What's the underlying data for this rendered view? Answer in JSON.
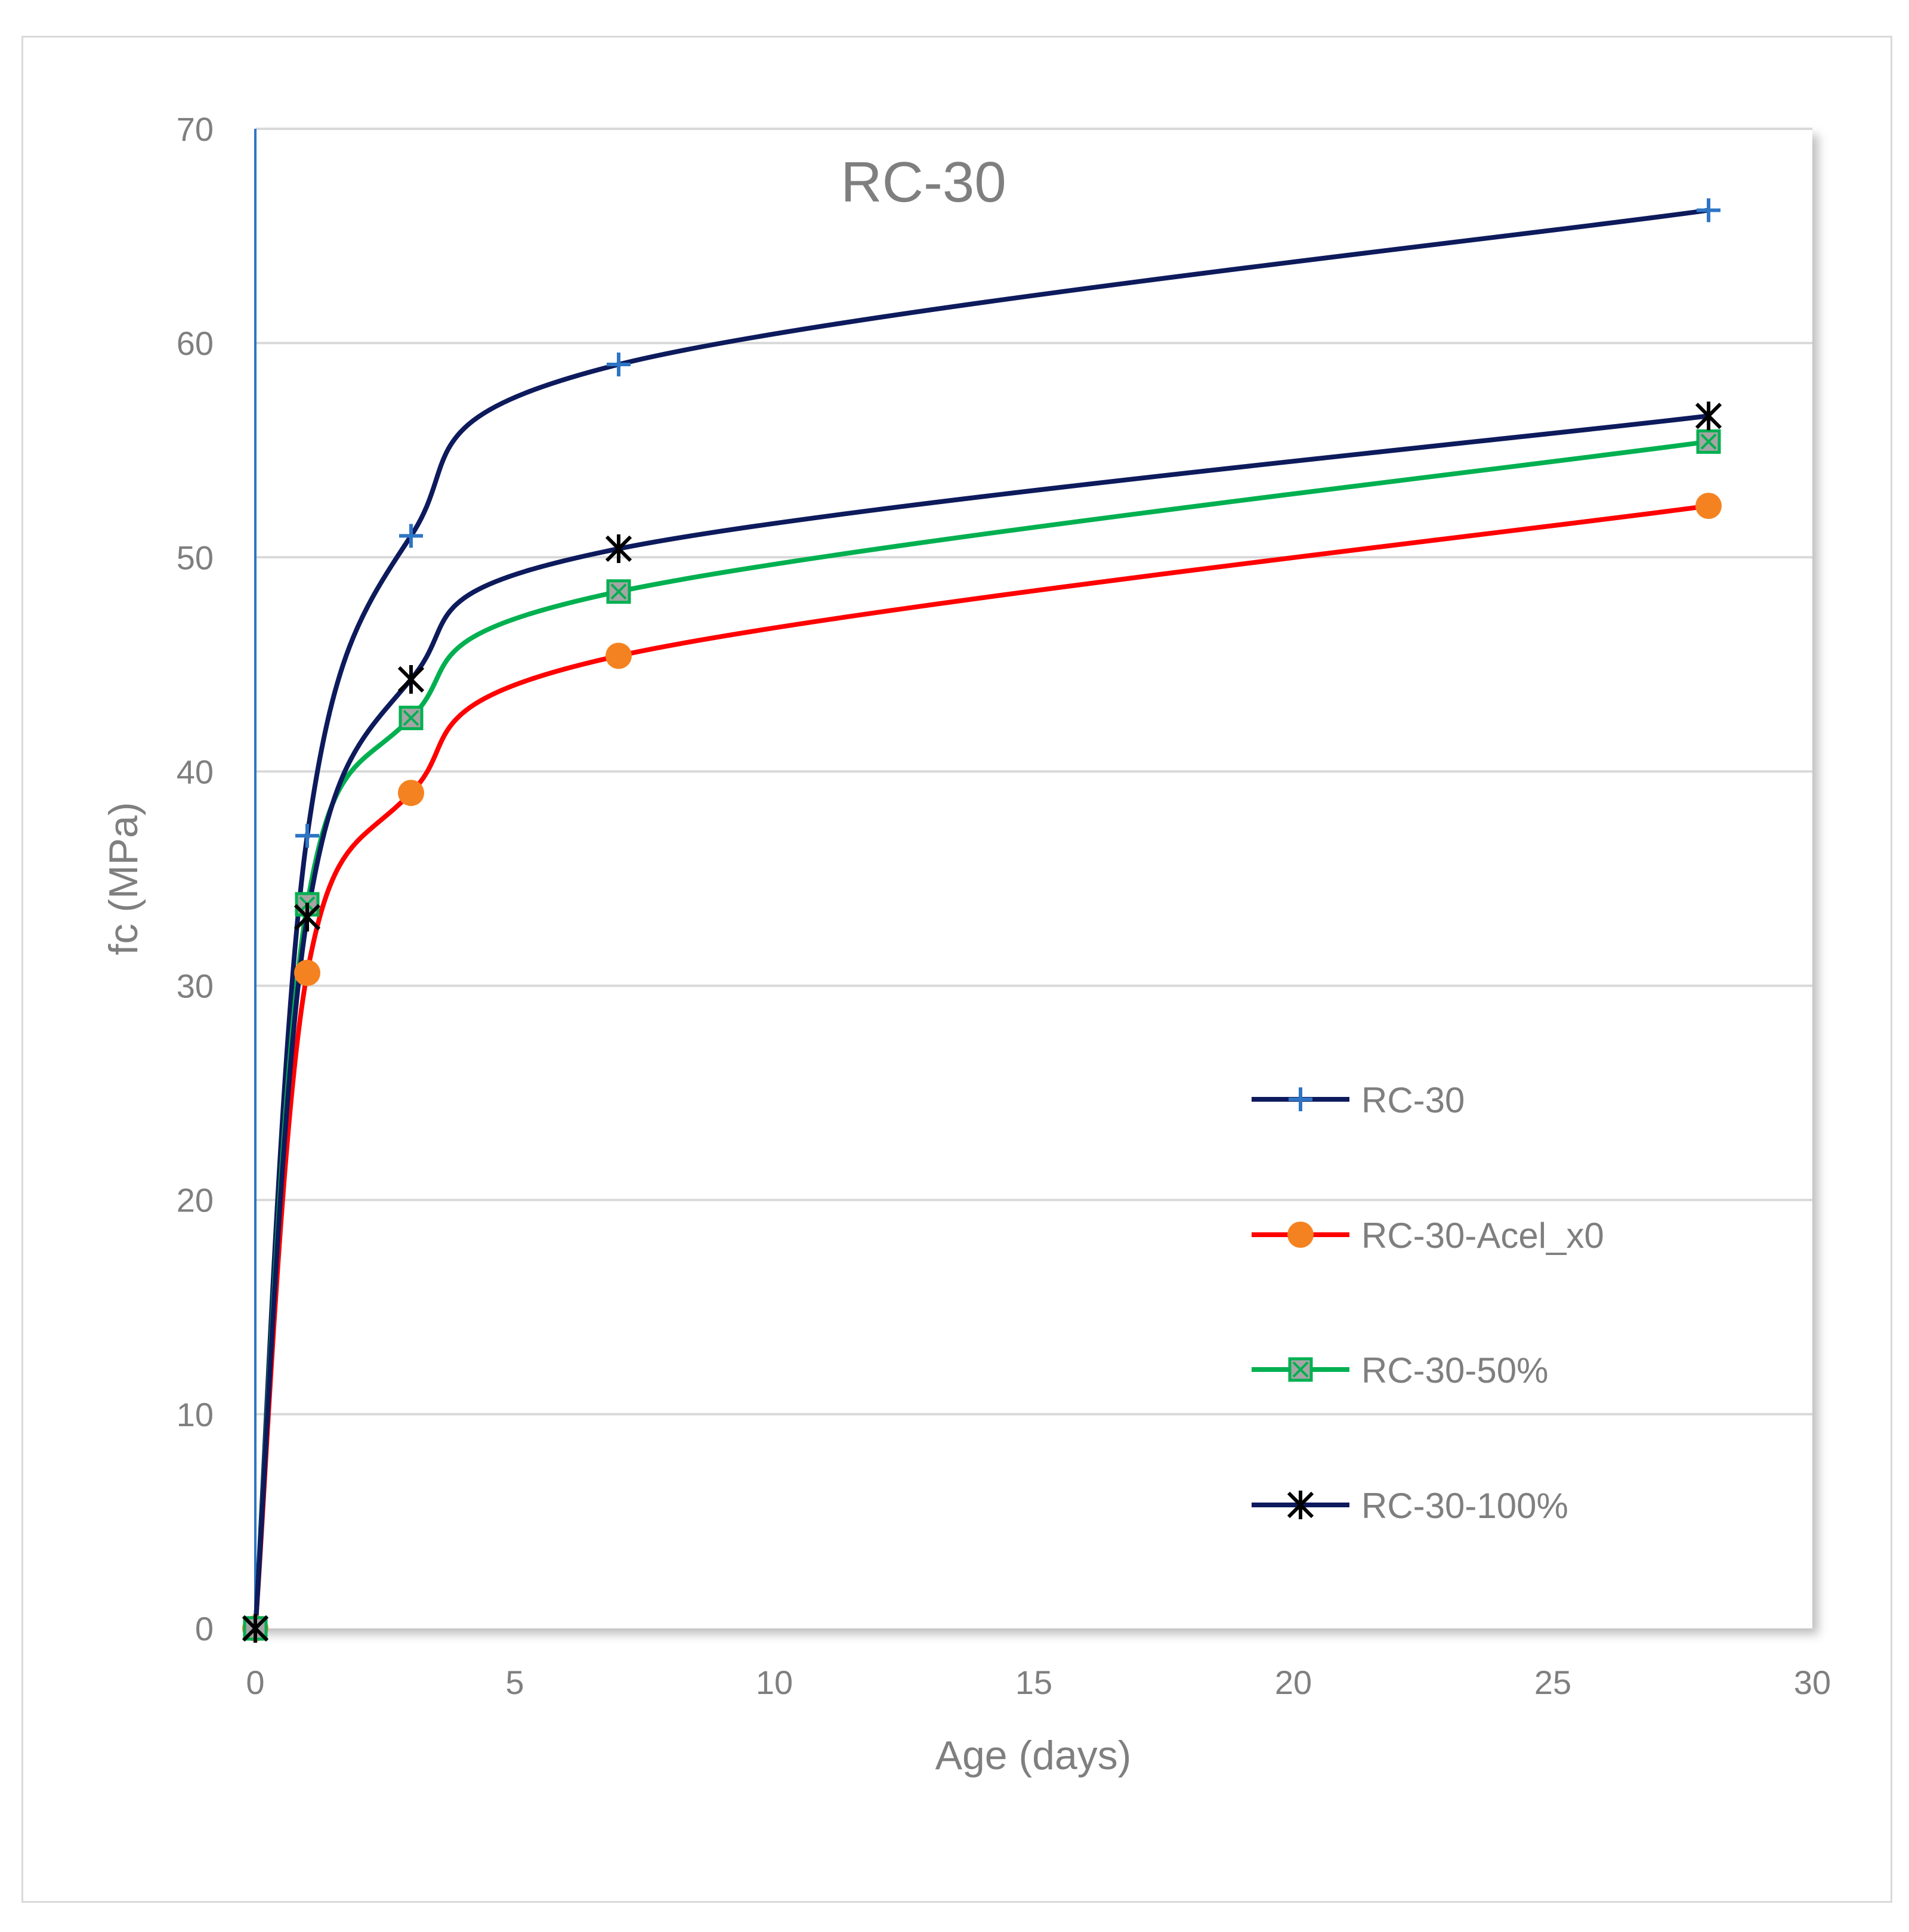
{
  "chart_data": {
    "type": "line",
    "title": "RC-30",
    "xlabel": "Age (days)",
    "ylabel": "fc (MPa)",
    "xlim": [
      0,
      30
    ],
    "ylim": [
      0,
      70
    ],
    "xticks": [
      0,
      5,
      10,
      15,
      20,
      25,
      30
    ],
    "yticks": [
      0,
      10,
      20,
      30,
      40,
      50,
      60,
      70
    ],
    "grid": "horizontal",
    "legend_position": "right",
    "x": [
      0,
      1,
      3,
      7,
      28
    ],
    "series": [
      {
        "name": "RC-30",
        "values": [
          0,
          37,
          51,
          59,
          66.2
        ],
        "line_color": "#0d1a5c",
        "marker": "plus",
        "marker_color": "#2e75c5"
      },
      {
        "name": "RC-30-Acel_x0",
        "values": [
          0,
          30.6,
          39,
          45.4,
          52.4
        ],
        "line_color": "#ff0000",
        "marker": "circle",
        "marker_color": "#f58220"
      },
      {
        "name": "RC-30-50%",
        "values": [
          0,
          33.8,
          42.5,
          48.4,
          55.4
        ],
        "line_color": "#00b050",
        "marker": "x-square",
        "marker_color": "#a5a5a5"
      },
      {
        "name": "RC-30-100%",
        "values": [
          0,
          33.2,
          44.3,
          50.4,
          56.6
        ],
        "line_color": "#0d1a5c",
        "marker": "star",
        "marker_color": "#000000"
      }
    ]
  }
}
